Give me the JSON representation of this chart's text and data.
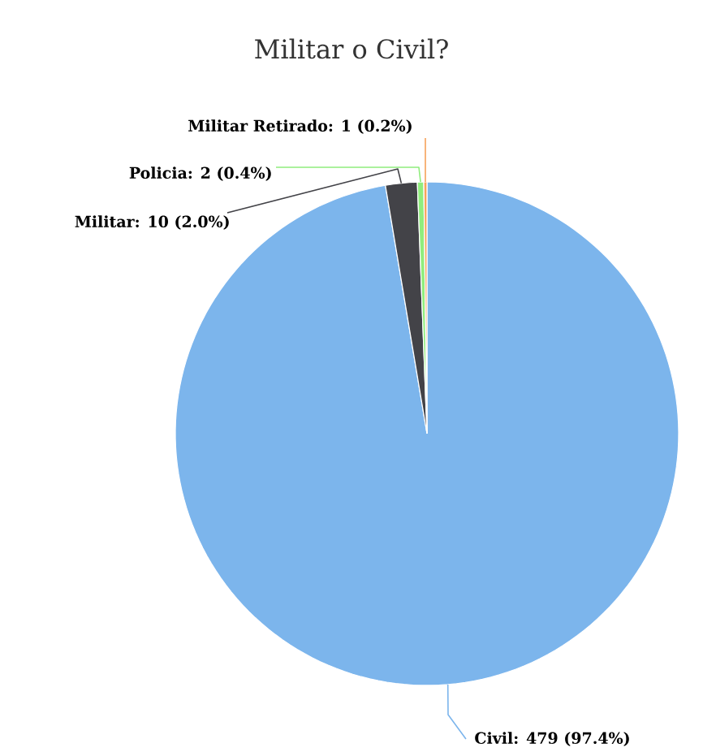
{
  "chart_data": {
    "type": "pie",
    "title": "Militar o Civil?",
    "categories": [
      "Civil",
      "Militar",
      "Policia",
      "Militar Retirado"
    ],
    "values": [
      479,
      10,
      2,
      1
    ],
    "value_labels": [
      ": 479 (97.4%)",
      ": 10 (2.0%)",
      ": 2 (0.4%)",
      ": 1 (0.2%)"
    ],
    "colors": [
      "#7cb5ec",
      "#434348",
      "#90ed7d",
      "#f7a35c"
    ]
  }
}
